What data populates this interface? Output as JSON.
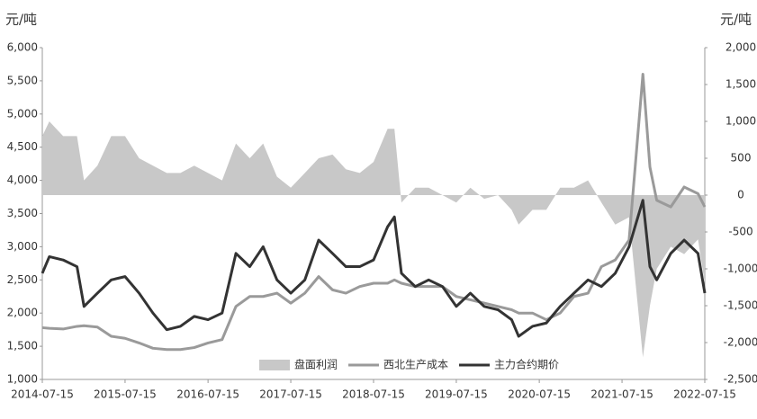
{
  "chart_data": {
    "type": "combo",
    "y_label": "元/吨",
    "y2_label": "元/吨",
    "x": [
      "2014-07-15",
      "2014-08-15",
      "2014-10-15",
      "2014-12-15",
      "2015-01-15",
      "2015-03-15",
      "2015-05-15",
      "2015-07-15",
      "2015-09-15",
      "2015-11-15",
      "2016-01-15",
      "2016-03-15",
      "2016-05-15",
      "2016-07-15",
      "2016-09-15",
      "2016-11-15",
      "2017-01-15",
      "2017-03-15",
      "2017-05-15",
      "2017-07-15",
      "2017-09-15",
      "2017-11-15",
      "2018-01-15",
      "2018-03-15",
      "2018-05-15",
      "2018-07-15",
      "2018-09-15",
      "2018-10-15",
      "2018-11-15",
      "2019-01-15",
      "2019-03-15",
      "2019-05-15",
      "2019-07-15",
      "2019-09-15",
      "2019-11-15",
      "2020-01-15",
      "2020-03-15",
      "2020-04-15",
      "2020-06-15",
      "2020-08-15",
      "2020-10-15",
      "2020-12-15",
      "2021-02-15",
      "2021-04-15",
      "2021-06-15",
      "2021-08-15",
      "2021-10-15",
      "2021-11-15",
      "2021-12-15",
      "2022-02-15",
      "2022-04-15",
      "2022-06-15",
      "2022-07-15"
    ],
    "series": [
      {
        "name": "盘面利润",
        "kind": "area",
        "axis": "y2",
        "color": "#c8c8c8",
        "values": [
          800,
          1000,
          800,
          800,
          200,
          400,
          800,
          800,
          500,
          400,
          300,
          300,
          400,
          300,
          200,
          700,
          500,
          700,
          250,
          100,
          300,
          500,
          550,
          350,
          300,
          450,
          900,
          900,
          -100,
          100,
          100,
          0,
          -100,
          100,
          -50,
          0,
          -200,
          -400,
          -200,
          -200,
          100,
          100,
          200,
          -100,
          -400,
          -300,
          -2200,
          -1500,
          -1000,
          -700,
          -800,
          -600,
          -1200
        ]
      },
      {
        "name": "西北生产成本",
        "kind": "line",
        "color": "#9a9a9a",
        "values": [
          1780,
          1770,
          1760,
          1800,
          1810,
          1790,
          1650,
          1620,
          1550,
          1470,
          1450,
          1450,
          1480,
          1550,
          1600,
          2100,
          2250,
          2250,
          2300,
          2150,
          2300,
          2550,
          2350,
          2300,
          2400,
          2450,
          2450,
          2500,
          2450,
          2400,
          2400,
          2400,
          2250,
          2200,
          2150,
          2100,
          2050,
          2000,
          2000,
          1900,
          2000,
          2250,
          2300,
          2700,
          2800,
          3100,
          5600,
          4200,
          3700,
          3600,
          3900,
          3800,
          3600
        ]
      },
      {
        "name": "主力合约期价",
        "kind": "line",
        "color": "#333333",
        "values": [
          2600,
          2850,
          2800,
          2700,
          2100,
          2300,
          2500,
          2550,
          2300,
          2000,
          1750,
          1800,
          1950,
          1900,
          2000,
          2900,
          2700,
          3000,
          2500,
          2300,
          2500,
          3100,
          2900,
          2700,
          2700,
          2800,
          3300,
          3450,
          2600,
          2400,
          2500,
          2400,
          2100,
          2300,
          2100,
          2050,
          1900,
          1650,
          1800,
          1850,
          2100,
          2300,
          2500,
          2400,
          2600,
          3000,
          3700,
          2700,
          2500,
          2900,
          3100,
          2900,
          2300
        ]
      }
    ],
    "xlim": [
      "2014-07-15",
      "2022-07-15"
    ],
    "xticks": [
      "2014-07-15",
      "2015-07-15",
      "2016-07-15",
      "2017-07-15",
      "2018-07-15",
      "2019-07-15",
      "2020-07-15",
      "2021-07-15",
      "2022-07-15"
    ],
    "ylim": [
      1000,
      6000
    ],
    "yticks": [
      {
        "value": 1000,
        "label": "1,000"
      },
      {
        "value": 1500,
        "label": "1,500"
      },
      {
        "value": 2000,
        "label": "2,000"
      },
      {
        "value": 2500,
        "label": "2,500"
      },
      {
        "value": 3000,
        "label": "3,000"
      },
      {
        "value": 3500,
        "label": "3,500"
      },
      {
        "value": 4000,
        "label": "4,000"
      },
      {
        "value": 4500,
        "label": "4,500"
      },
      {
        "value": 5000,
        "label": "5,000"
      },
      {
        "value": 5500,
        "label": "5,500"
      },
      {
        "value": 6000,
        "label": "6,000"
      }
    ],
    "y2lim": [
      -2500,
      2000
    ],
    "y2ticks": [
      {
        "value": -2500,
        "label": "-2,500"
      },
      {
        "value": -2000,
        "label": "-2,000"
      },
      {
        "value": -1500,
        "label": "-1,500"
      },
      {
        "value": -1000,
        "label": "-1,000"
      },
      -500,
      0,
      500,
      {
        "value": 1000,
        "label": "1,000"
      },
      {
        "value": 1500,
        "label": "1,500"
      },
      {
        "value": 2000,
        "label": "2,000"
      }
    ],
    "legend": "bottom"
  }
}
